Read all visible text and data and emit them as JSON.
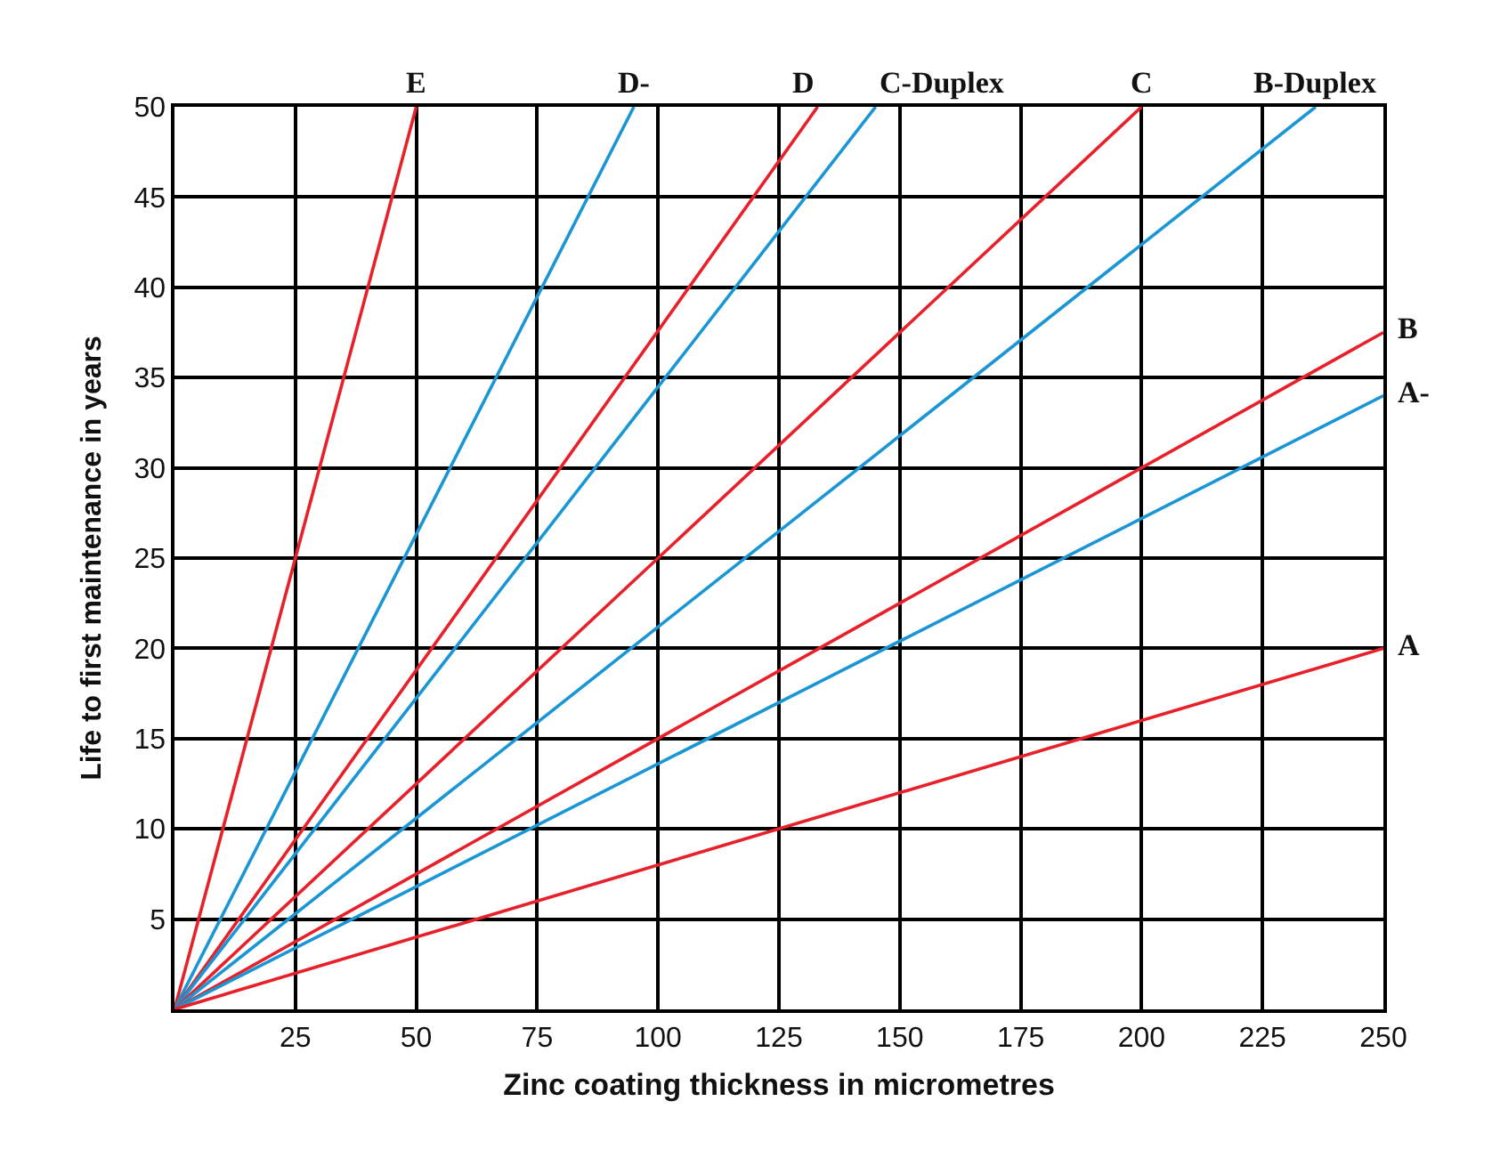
{
  "chart_data": {
    "type": "line",
    "xlabel": "Zinc coating thickness in micrometres",
    "ylabel": "Life to first maintenance in years",
    "xlim": [
      0,
      250
    ],
    "xticks": [
      25,
      50,
      75,
      100,
      125,
      150,
      175,
      200,
      225,
      250
    ],
    "ylim": [
      0,
      50
    ],
    "yticks": [
      5,
      10,
      15,
      20,
      25,
      30,
      35,
      40,
      45,
      50
    ],
    "grid": true,
    "legend": false,
    "marker": "none",
    "line_style": "solid",
    "series": [
      {
        "name": "E",
        "color": "#e8202a",
        "x": [
          0,
          50
        ],
        "values": [
          0,
          50
        ]
      },
      {
        "name": "D-",
        "color": "#1a96d4",
        "x": [
          0,
          95
        ],
        "values": [
          0,
          50
        ]
      },
      {
        "name": "D",
        "color": "#e8202a",
        "x": [
          0,
          133
        ],
        "values": [
          0,
          50
        ]
      },
      {
        "name": "C-Duplex",
        "color": "#1a96d4",
        "x": [
          0,
          145
        ],
        "values": [
          0,
          50
        ]
      },
      {
        "name": "C",
        "color": "#e8202a",
        "x": [
          0,
          200
        ],
        "values": [
          0,
          50
        ]
      },
      {
        "name": "B-Duplex",
        "color": "#1a96d4",
        "x": [
          0,
          236
        ],
        "values": [
          0,
          50
        ]
      },
      {
        "name": "B",
        "color": "#e8202a",
        "x": [
          0,
          250
        ],
        "values": [
          0,
          37.5
        ]
      },
      {
        "name": "A-",
        "color": "#1a96d4",
        "x": [
          0,
          250
        ],
        "values": [
          0,
          34
        ]
      },
      {
        "name": "A",
        "color": "#e8202a",
        "x": [
          0,
          250
        ],
        "values": [
          0,
          20
        ]
      }
    ]
  }
}
